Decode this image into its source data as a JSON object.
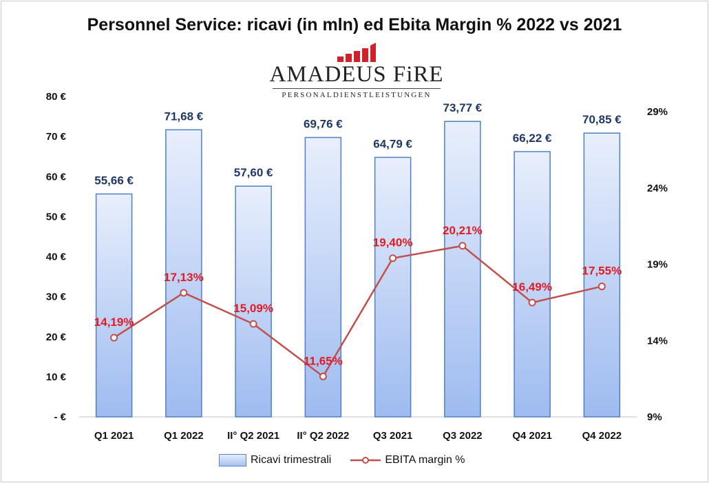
{
  "title": "Personnel Service: ricavi (in mln) ed Ebita Margin % 2022 vs 2021",
  "logo": {
    "name": "AMADEUS FiRE",
    "tagline": "PERSONALDIENSTLEISTUNGEN",
    "brand_color": "#d0202a"
  },
  "colors": {
    "bar_fill_top": "#e6eefc",
    "bar_fill_bottom": "#9fbcf0",
    "bar_stroke": "#4f7fc0",
    "line": "#c0504d",
    "bar_label": "#1f3864",
    "line_label": "#e11b22"
  },
  "chart_data": {
    "type": "bar",
    "categories": [
      "Q1 2021",
      "Q1 2022",
      "II° Q2 2021",
      "II° Q2 2022",
      "Q3 2021",
      "Q3 2022",
      "Q4 2021",
      "Q4 2022"
    ],
    "series": [
      {
        "name": "Ricavi trimestrali",
        "type": "bar",
        "axis": "left",
        "values": [
          55.66,
          71.68,
          57.6,
          69.76,
          64.79,
          73.77,
          66.22,
          70.85
        ],
        "labels": [
          "55,66 €",
          "71,68 €",
          "57,60 €",
          "69,76 €",
          "64,79 €",
          "73,77 €",
          "66,22 €",
          "70,85 €"
        ]
      },
      {
        "name": "EBITA margin %",
        "type": "line",
        "axis": "right",
        "values": [
          14.19,
          17.13,
          15.09,
          11.65,
          19.4,
          20.21,
          16.49,
          17.55
        ],
        "labels": [
          "14,19%",
          "17,13%",
          "15,09%",
          "11,65%",
          "19,40%",
          "20,21%",
          "16,49%",
          "17,55%"
        ]
      }
    ],
    "y_left": {
      "range": [
        0,
        80
      ],
      "ticks": [
        0,
        10,
        20,
        30,
        40,
        50,
        60,
        70,
        80
      ],
      "tick_labels": [
        "- €",
        "10 €",
        "20 €",
        "30 €",
        "40 €",
        "50 €",
        "60 €",
        "70 €",
        "80 €"
      ]
    },
    "y_right": {
      "range": [
        9,
        30
      ],
      "ticks": [
        9,
        14,
        19,
        24,
        29
      ],
      "tick_labels": [
        "9%",
        "14%",
        "19%",
        "24%",
        "29%"
      ]
    },
    "grid": false,
    "legend_position": "bottom"
  }
}
